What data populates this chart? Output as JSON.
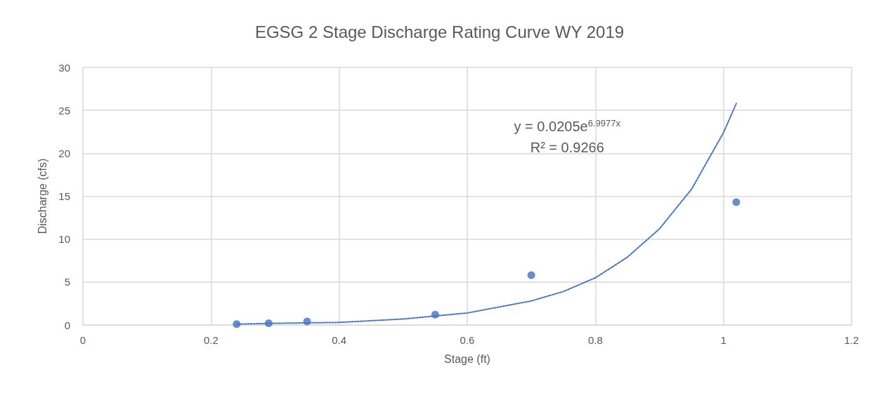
{
  "chart_data": {
    "type": "scatter",
    "title": "EGSG 2 Stage Discharge Rating Curve WY 2019",
    "xlabel": "Stage (ft)",
    "ylabel": "Discharge (cfs)",
    "series": [
      {
        "color": "#4472c4",
        "marker": "circle",
        "x": [
          0.24,
          0.29,
          0.35,
          0.55,
          0.7,
          1.02
        ],
        "values": [
          0.1,
          0.2,
          0.4,
          1.2,
          5.8,
          14.3
        ]
      },
      {
        "type": "line",
        "color": "#4472c4",
        "marker": "none",
        "line_style": "dotted",
        "x": [
          0.24,
          0.3,
          0.4,
          0.5,
          0.6,
          0.7,
          0.75,
          0.8,
          0.85,
          0.9,
          0.95,
          1.0,
          1.02
        ],
        "values": [
          0.1,
          0.2,
          0.3,
          0.7,
          1.4,
          2.8,
          3.9,
          5.5,
          7.9,
          11.2,
          15.8,
          22.4,
          25.8
        ]
      }
    ],
    "xlim": [
      0,
      1.2
    ],
    "xticks": [
      0,
      0.2,
      0.4,
      0.6,
      0.8,
      1,
      1.2
    ],
    "ylim": [
      0,
      30
    ],
    "yticks": [
      0,
      5,
      10,
      15,
      20,
      25,
      30
    ],
    "grid": true,
    "annotations": [
      "y = 0.0205e$^{6.9977x}$",
      "R² = 0.9266"
    ]
  }
}
